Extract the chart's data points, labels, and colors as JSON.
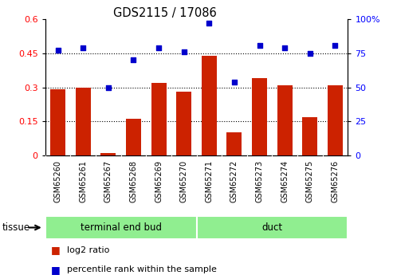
{
  "title": "GDS2115 / 17086",
  "categories": [
    "GSM65260",
    "GSM65261",
    "GSM65267",
    "GSM65268",
    "GSM65269",
    "GSM65270",
    "GSM65271",
    "GSM65272",
    "GSM65273",
    "GSM65274",
    "GSM65275",
    "GSM65276"
  ],
  "log2_ratio": [
    0.29,
    0.3,
    0.01,
    0.16,
    0.32,
    0.28,
    0.44,
    0.1,
    0.34,
    0.31,
    0.17,
    0.31
  ],
  "percentile_rank": [
    77,
    79,
    50,
    70,
    79,
    76,
    97,
    54,
    81,
    79,
    75,
    81
  ],
  "bar_color": "#cc2200",
  "scatter_color": "#0000cc",
  "ylim_left": [
    0,
    0.6
  ],
  "ylim_right": [
    0,
    100
  ],
  "yticks_left": [
    0,
    0.15,
    0.3,
    0.45,
    0.6
  ],
  "yticks_right": [
    0,
    25,
    50,
    75,
    100
  ],
  "yticklabels_left": [
    "0",
    "0.15",
    "0.3",
    "0.45",
    "0.6"
  ],
  "yticklabels_right": [
    "0",
    "25",
    "50",
    "75",
    "100%"
  ],
  "gridlines": [
    0.15,
    0.3,
    0.45
  ],
  "n_teb": 6,
  "n_duct": 6,
  "tissue_label_teb": "terminal end bud",
  "tissue_label_duct": "duct",
  "tissue_color": "#90ee90",
  "xtick_bg": "#c8c8c8",
  "legend_bar_label": "log2 ratio",
  "legend_scatter_label": "percentile rank within the sample"
}
